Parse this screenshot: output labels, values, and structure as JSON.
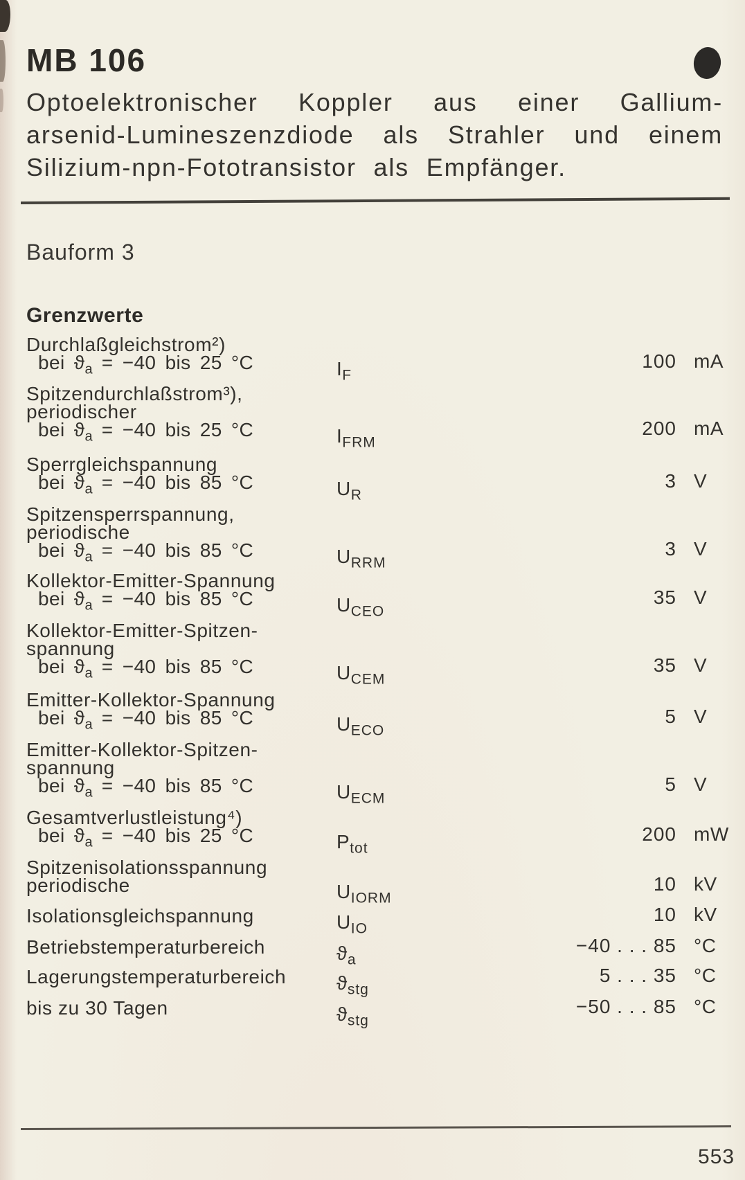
{
  "page": {
    "model": "MB 106",
    "description_lines": [
      "Optoelektronischer Koppler aus einer Gallium-",
      "arsenid-Lumineszenzdiode als Strahler und einem",
      "Silizium-npn-Fototransistor als Empfänger."
    ],
    "bauform": "Bauform 3",
    "section_title": "Grenzwerte",
    "page_number": "553"
  },
  "icons": {
    "corner_dot": "black-print-dot"
  },
  "limits_table": {
    "rows": [
      {
        "label_lines": [
          "Durchlaßgleichstrom²)"
        ],
        "condition": {
          "pre": "bei ϑ",
          "sub": "a",
          "post": " = −40 bis 25 °C"
        },
        "symbol": {
          "base": "I",
          "sub": "F"
        },
        "value": "100",
        "unit": "mA"
      },
      {
        "label_lines": [
          "Spitzendurchlaßstrom³),",
          "periodischer"
        ],
        "condition": {
          "pre": "bei ϑ",
          "sub": "a",
          "post": " = −40 bis 25 °C"
        },
        "symbol": {
          "base": "I",
          "sub": "FRM"
        },
        "value": "200",
        "unit": "mA"
      },
      {
        "label_lines": [
          "Sperrgleichspannung"
        ],
        "condition": {
          "pre": "bei ϑ",
          "sub": "a",
          "post": " = −40 bis 85 °C"
        },
        "symbol": {
          "base": "U",
          "sub": "R"
        },
        "value": "3",
        "unit": "V"
      },
      {
        "label_lines": [
          "Spitzensperrspannung,",
          "periodische"
        ],
        "condition": {
          "pre": "bei ϑ",
          "sub": "a",
          "post": " = −40 bis 85 °C"
        },
        "symbol": {
          "base": "U",
          "sub": "RRM"
        },
        "value": "3",
        "unit": "V"
      },
      {
        "label_lines": [
          "Kollektor-Emitter-Spannung"
        ],
        "condition": {
          "pre": "bei ϑ",
          "sub": "a",
          "post": " = −40 bis 85 °C"
        },
        "symbol": {
          "base": "U",
          "sub": "CEO"
        },
        "value": "35",
        "unit": "V"
      },
      {
        "label_lines": [
          "Kollektor-Emitter-Spitzen-",
          "spannung"
        ],
        "condition": {
          "pre": "bei ϑ",
          "sub": "a",
          "post": " = −40 bis 85 °C"
        },
        "symbol": {
          "base": "U",
          "sub": "CEM"
        },
        "value": "35",
        "unit": "V"
      },
      {
        "label_lines": [
          "Emitter-Kollektor-Spannung"
        ],
        "condition": {
          "pre": "bei ϑ",
          "sub": "a",
          "post": " = −40 bis 85 °C"
        },
        "symbol": {
          "base": "U",
          "sub": "ECO"
        },
        "value": "5",
        "unit": "V"
      },
      {
        "label_lines": [
          "Emitter-Kollektor-Spitzen-",
          "spannung"
        ],
        "condition": {
          "pre": "bei ϑ",
          "sub": "a",
          "post": " = −40 bis 85 °C"
        },
        "symbol": {
          "base": "U",
          "sub": "ECM"
        },
        "value": "5",
        "unit": "V"
      },
      {
        "label_lines": [
          "Gesamtverlustleistung⁴)"
        ],
        "condition": {
          "pre": "bei ϑ",
          "sub": "a",
          "post": " = −40 bis 25 °C"
        },
        "symbol": {
          "base": "P",
          "sub": "tot"
        },
        "value": "200",
        "unit": "mW"
      },
      {
        "label_lines": [
          "Spitzenisolationsspannung",
          "periodische"
        ],
        "condition": null,
        "symbol": {
          "base": "U",
          "sub": "IORM"
        },
        "value": "10",
        "unit": "kV"
      },
      {
        "label_lines": [
          "Isolationsgleichspannung"
        ],
        "condition": null,
        "symbol": {
          "base": "U",
          "sub": "IO"
        },
        "value": "10",
        "unit": "kV"
      },
      {
        "label_lines": [
          "Betriebstemperaturbereich"
        ],
        "condition": null,
        "symbol": {
          "base": "ϑ",
          "sub": "a"
        },
        "value": "−40 . . . 85",
        "unit": "°C"
      },
      {
        "label_lines": [
          "Lagerungstemperaturbereich"
        ],
        "condition": null,
        "symbol": {
          "base": "ϑ",
          "sub": "stg"
        },
        "value": "5 . . . 35",
        "unit": "°C"
      },
      {
        "label_lines": [
          "bis zu 30 Tagen"
        ],
        "condition": null,
        "symbol": {
          "base": "ϑ",
          "sub": "stg"
        },
        "value": "−50 . . . 85",
        "unit": "°C"
      }
    ]
  }
}
